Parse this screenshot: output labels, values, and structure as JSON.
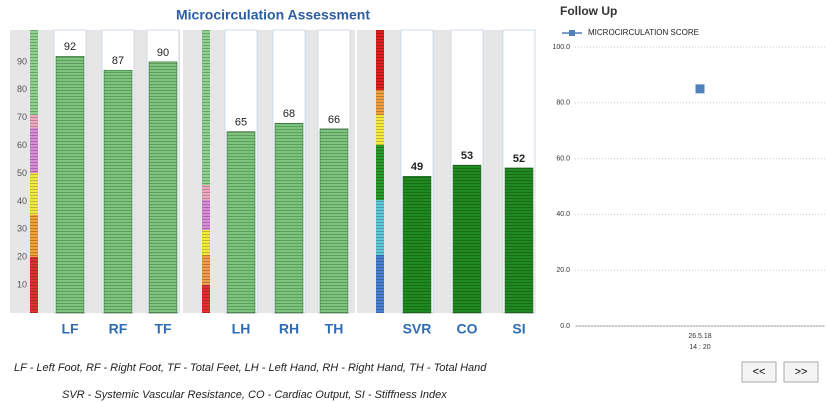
{
  "chart_data": [
    {
      "type": "bar",
      "title": "Microcirculation Assessment",
      "categories": [
        "LF",
        "RF",
        "TF"
      ],
      "values": [
        92,
        87,
        90
      ],
      "color": "#7cc57c",
      "ylim": [
        0,
        100
      ],
      "yticks": [
        10,
        20,
        30,
        40,
        50,
        60,
        70,
        80,
        90
      ]
    },
    {
      "type": "bar",
      "categories": [
        "LH",
        "RH",
        "TH"
      ],
      "values": [
        65,
        68,
        66
      ],
      "color": "#7cc57c",
      "ylim": [
        0,
        100
      ]
    },
    {
      "type": "bar",
      "categories": [
        "SVR",
        "CO",
        "SI"
      ],
      "values": [
        49,
        53,
        52
      ],
      "color": "#1f8a1f",
      "ylim": [
        0,
        100
      ]
    },
    {
      "type": "scatter",
      "title": "Follow Up",
      "categories": [
        "26.5.18"
      ],
      "times": [
        "14 : 20"
      ],
      "series": [
        {
          "name": "MICROCIRCULATION SCORE",
          "color": "#4f81bd",
          "values": [
            85
          ]
        }
      ],
      "ylim": [
        0,
        100
      ],
      "yticks": [
        {
          "value": 0,
          "label": "0.0"
        },
        {
          "value": 20,
          "label": "20.0"
        },
        {
          "value": 40,
          "label": "40.0"
        },
        {
          "value": 60,
          "label": "60.0"
        },
        {
          "value": 80,
          "label": "80.0"
        },
        {
          "value": 100,
          "label": "100.0"
        }
      ],
      "grid": true
    }
  ],
  "notes": [
    "LF - Left Foot, RF - Right Foot, TF - Total Feet, LH - Left Hand, RH - Right Hand, TH - Total Hand",
    "SVR - Systemic Vascular Resistance, CO - Cardiac Output, SI - Stiffness Index"
  ],
  "buttons": [
    "<<",
    ">>"
  ]
}
